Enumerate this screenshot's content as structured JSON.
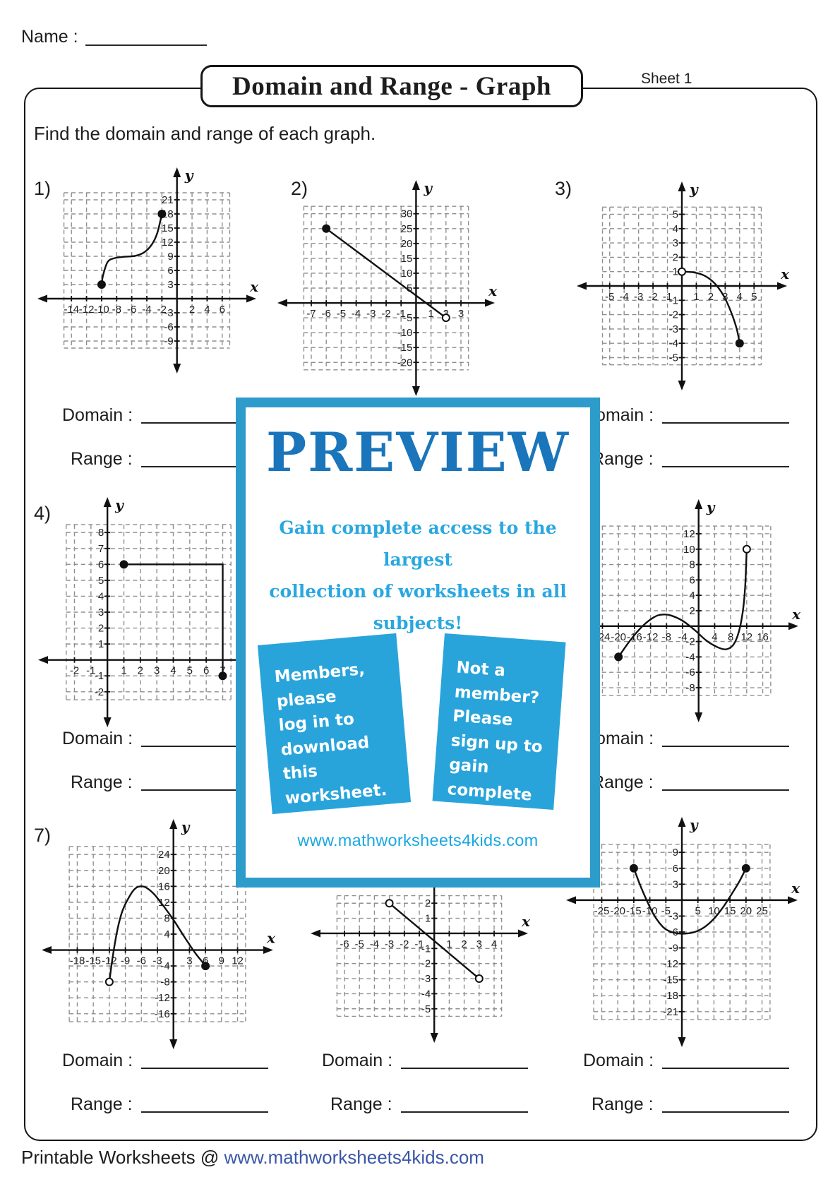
{
  "worksheet": {
    "name_label": "Name :",
    "sheet_label": "Sheet 1",
    "title": "Domain and Range - Graph",
    "instruction": "Find the domain and range of each graph.",
    "domain_label": "Domain :",
    "range_label": "Range :",
    "footer": {
      "prefix": "Printable Worksheets @ ",
      "link": "www.mathworksheets4kids.com"
    }
  },
  "preview_overlay": {
    "title": "PREVIEW",
    "subtitle_line1": "Gain complete access to the largest",
    "subtitle_line2": "collection of worksheets in all subjects!",
    "member_card": "Members, please\nlog in to\ndownload this\nworksheet.",
    "nonmember_card": "Not a member?\nPlease sign up to\ngain complete\naccess.",
    "website": "www.mathworksheets4kids.com",
    "colors": {
      "border": "#2d9ccb",
      "card": "#29a4db",
      "title_text": "#1a75bb",
      "body_text": "#2aa7e0"
    }
  },
  "chart_data": [
    {
      "id": 1,
      "number_label": "1)",
      "type": "line",
      "grid": true,
      "xlabel": "x",
      "ylabel": "y",
      "xticks": [
        -14,
        -12,
        -10,
        -8,
        -6,
        -4,
        -2,
        2,
        4,
        6
      ],
      "xstep": 2,
      "yticks": [
        21,
        18,
        15,
        12,
        9,
        6,
        3,
        -3,
        -6,
        -9
      ],
      "ystep": 3,
      "smooth": true,
      "points": [
        [
          -10,
          3
        ],
        [
          -9.8,
          5
        ],
        [
          -9.2,
          7.8
        ],
        [
          -8.3,
          8.6
        ],
        [
          -7,
          8.9
        ],
        [
          -5.5,
          9.1
        ],
        [
          -4.3,
          9.9
        ],
        [
          -3.3,
          11.6
        ],
        [
          -2.6,
          14
        ],
        [
          -2,
          18
        ]
      ],
      "endpoints": [
        {
          "x": -10,
          "y": 3,
          "style": "closed"
        },
        {
          "x": -2,
          "y": 18,
          "style": "closed"
        }
      ]
    },
    {
      "id": 2,
      "number_label": "2)",
      "type": "line",
      "grid": true,
      "xlabel": "x",
      "ylabel": "y",
      "xticks": [
        -7,
        -6,
        -5,
        -4,
        -3,
        -2,
        -1,
        1,
        2,
        3
      ],
      "xstep": 1,
      "yticks": [
        30,
        25,
        20,
        15,
        10,
        5,
        -5,
        -10,
        -15,
        -20
      ],
      "ystep": 5,
      "smooth": false,
      "points": [
        [
          -6,
          25
        ],
        [
          2,
          -5
        ]
      ],
      "endpoints": [
        {
          "x": -6,
          "y": 25,
          "style": "closed"
        },
        {
          "x": 2,
          "y": -5,
          "style": "open"
        }
      ]
    },
    {
      "id": 3,
      "number_label": "3)",
      "type": "line",
      "grid": true,
      "xlabel": "x",
      "ylabel": "y",
      "xticks": [
        -5,
        -4,
        -3,
        -2,
        -1,
        1,
        2,
        3,
        4,
        5
      ],
      "xstep": 1,
      "yticks": [
        5,
        4,
        3,
        2,
        1,
        -1,
        -2,
        -3,
        -4,
        -5
      ],
      "ystep": 1,
      "smooth": true,
      "points": [
        [
          0,
          1
        ],
        [
          0.8,
          0.95
        ],
        [
          1.6,
          0.7
        ],
        [
          2.3,
          0.15
        ],
        [
          2.9,
          -0.7
        ],
        [
          3.4,
          -1.8
        ],
        [
          3.8,
          -3
        ],
        [
          4,
          -4
        ]
      ],
      "endpoints": [
        {
          "x": 0,
          "y": 1,
          "style": "open"
        },
        {
          "x": 4,
          "y": -4,
          "style": "closed"
        }
      ]
    },
    {
      "id": 4,
      "number_label": "4)",
      "type": "line",
      "grid": true,
      "xlabel": "x",
      "ylabel": "y",
      "xticks": [
        -2,
        -1,
        1,
        2,
        3,
        4,
        5,
        6,
        7
      ],
      "xstep": 1,
      "yticks": [
        8,
        7,
        6,
        5,
        4,
        3,
        2,
        1,
        -1,
        -2
      ],
      "ystep": 1,
      "smooth": false,
      "points": [
        [
          1,
          6
        ],
        [
          7,
          6
        ],
        [
          7,
          -1
        ]
      ],
      "endpoints": [
        {
          "x": 1,
          "y": 6,
          "style": "closed"
        },
        {
          "x": 7,
          "y": -1,
          "style": "closed"
        }
      ]
    },
    {
      "id": 6,
      "number_label": null,
      "type": "line",
      "grid": true,
      "xlabel": "x",
      "ylabel": "y",
      "xticks": [
        -24,
        -20,
        -16,
        -12,
        -8,
        -4,
        4,
        8,
        12,
        16
      ],
      "xstep": 4,
      "yticks": [
        12,
        10,
        8,
        6,
        4,
        2,
        -2,
        -4,
        -6,
        -8
      ],
      "ystep": 2,
      "smooth": true,
      "points": [
        [
          -20,
          -4
        ],
        [
          -17,
          -1.8
        ],
        [
          -14,
          0
        ],
        [
          -11,
          1.2
        ],
        [
          -9,
          1.5
        ],
        [
          -7,
          1.4
        ],
        [
          -4,
          0.7
        ],
        [
          -1,
          -0.5
        ],
        [
          2,
          -1.9
        ],
        [
          5,
          -2.8
        ],
        [
          7,
          -3
        ],
        [
          8.7,
          -2.4
        ],
        [
          10,
          -0.8
        ],
        [
          11,
          1.8
        ],
        [
          11.6,
          5
        ],
        [
          12,
          10
        ]
      ],
      "endpoints": [
        {
          "x": -20,
          "y": -4,
          "style": "closed"
        },
        {
          "x": 12,
          "y": 10,
          "style": "open"
        }
      ]
    },
    {
      "id": 7,
      "number_label": "7)",
      "type": "line",
      "grid": true,
      "xlabel": "x",
      "ylabel": "y",
      "xticks": [
        -18,
        -15,
        -12,
        -9,
        -6,
        -3,
        3,
        6,
        9,
        12
      ],
      "xstep": 3,
      "yticks": [
        24,
        20,
        16,
        12,
        8,
        4,
        -4,
        -8,
        -12,
        -16
      ],
      "ystep": 4,
      "smooth": true,
      "points": [
        [
          -12,
          -8
        ],
        [
          -11.4,
          -2
        ],
        [
          -10.5,
          5
        ],
        [
          -9.5,
          10
        ],
        [
          -8,
          14
        ],
        [
          -7,
          15.6
        ],
        [
          -6,
          16
        ],
        [
          -5,
          15.6
        ],
        [
          -3.6,
          14
        ],
        [
          -2,
          11.3
        ],
        [
          0,
          7.6
        ],
        [
          2,
          3.4
        ],
        [
          4,
          -0.6
        ],
        [
          5.3,
          -2.8
        ],
        [
          6,
          -4
        ]
      ],
      "endpoints": [
        {
          "x": -12,
          "y": -8,
          "style": "open"
        },
        {
          "x": 6,
          "y": -4,
          "style": "closed"
        }
      ]
    },
    {
      "id": 8,
      "number_label": null,
      "type": "line",
      "grid": true,
      "xlabel": "x",
      "ylabel": "y",
      "xticks": [
        -6,
        -5,
        -4,
        -3,
        -2,
        -1,
        1,
        2,
        3,
        4
      ],
      "xstep": 1,
      "yticks": [
        2,
        1,
        -1,
        -2,
        -3,
        -4,
        -5
      ],
      "ystep": 1,
      "smooth": false,
      "points": [
        [
          -3,
          2
        ],
        [
          3,
          -3
        ]
      ],
      "endpoints": [
        {
          "x": -3,
          "y": 2,
          "style": "open"
        },
        {
          "x": 3,
          "y": -3,
          "style": "open"
        }
      ]
    },
    {
      "id": 9,
      "number_label": null,
      "type": "line",
      "grid": true,
      "xlabel": "x",
      "ylabel": "y",
      "xticks": [
        -25,
        -20,
        -15,
        -10,
        -5,
        5,
        10,
        15,
        20,
        25
      ],
      "xstep": 5,
      "yticks": [
        9,
        6,
        3,
        -3,
        -6,
        -9,
        -12,
        -15,
        -18,
        -21
      ],
      "ystep": 3,
      "smooth": true,
      "points": [
        [
          -15,
          6
        ],
        [
          -13,
          2.8
        ],
        [
          -11,
          0
        ],
        [
          -9,
          -2.5
        ],
        [
          -7,
          -4.3
        ],
        [
          -5,
          -5.5
        ],
        [
          -2,
          -6.2
        ],
        [
          1,
          -6.3
        ],
        [
          4,
          -6
        ],
        [
          7,
          -5.1
        ],
        [
          10,
          -3.5
        ],
        [
          13,
          -1.2
        ],
        [
          16,
          1.6
        ],
        [
          18,
          3.6
        ],
        [
          20,
          6
        ]
      ],
      "endpoints": [
        {
          "x": -15,
          "y": 6,
          "style": "closed"
        },
        {
          "x": 20,
          "y": 6,
          "style": "closed"
        }
      ]
    }
  ]
}
